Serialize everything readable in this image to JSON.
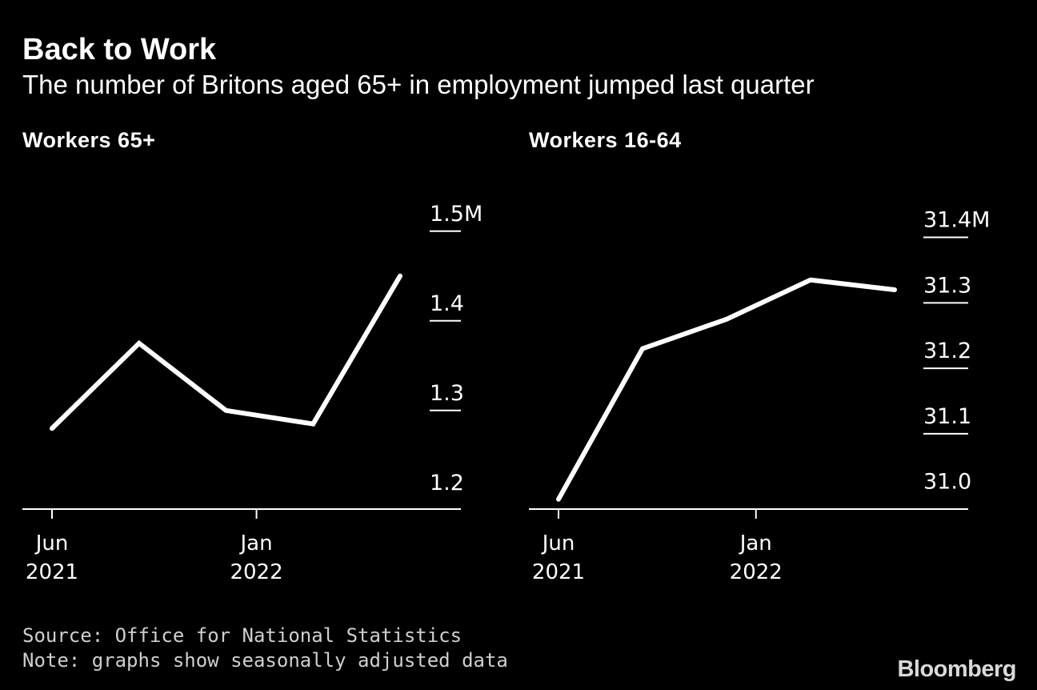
{
  "title": "Back to Work",
  "subtitle": "The number of Britons aged 65+ in employment jumped last quarter",
  "colors": {
    "background": "#000000",
    "line": "#ffffff",
    "axis": "#ffffff",
    "text": "#ffffff"
  },
  "chart_data": [
    {
      "type": "line",
      "title": "Workers 65+",
      "unit": "M",
      "x": [
        "2021-06",
        "2021-09",
        "2021-12",
        "2022-03",
        "2022-06"
      ],
      "values": [
        1.28,
        1.375,
        1.3,
        1.285,
        1.45
      ],
      "ylim": [
        1.19,
        1.515
      ],
      "yticks": [
        {
          "value": 1.5,
          "label": "1.5M"
        },
        {
          "value": 1.4,
          "label": "1.4"
        },
        {
          "value": 1.3,
          "label": "1.3"
        },
        {
          "value": 1.2,
          "label": "1.2"
        }
      ],
      "xticks": [
        {
          "value": 0,
          "label1": "Jun",
          "label2": "2021"
        },
        {
          "value": 2.35,
          "label1": "Jan",
          "label2": "2022"
        }
      ],
      "xlabel": "",
      "ylabel": ""
    },
    {
      "type": "line",
      "title": "Workers 16-64",
      "unit": "M",
      "x": [
        "2021-06",
        "2021-09",
        "2021-12",
        "2022-03",
        "2022-06"
      ],
      "values": [
        31.0,
        31.23,
        31.275,
        31.335,
        31.32
      ],
      "ylim": [
        30.985,
        31.43
      ],
      "yticks": [
        {
          "value": 31.4,
          "label": "31.4M"
        },
        {
          "value": 31.3,
          "label": "31.3"
        },
        {
          "value": 31.2,
          "label": "31.2"
        },
        {
          "value": 31.1,
          "label": "31.1"
        },
        {
          "value": 31.0,
          "label": "31.0"
        }
      ],
      "xticks": [
        {
          "value": 0,
          "label1": "Jun",
          "label2": "2021"
        },
        {
          "value": 2.35,
          "label1": "Jan",
          "label2": "2022"
        }
      ],
      "xlabel": "",
      "ylabel": ""
    }
  ],
  "footer": {
    "source": "Source: Office for National Statistics",
    "note": "Note: graphs show seasonally adjusted data"
  },
  "brand": "Bloomberg"
}
